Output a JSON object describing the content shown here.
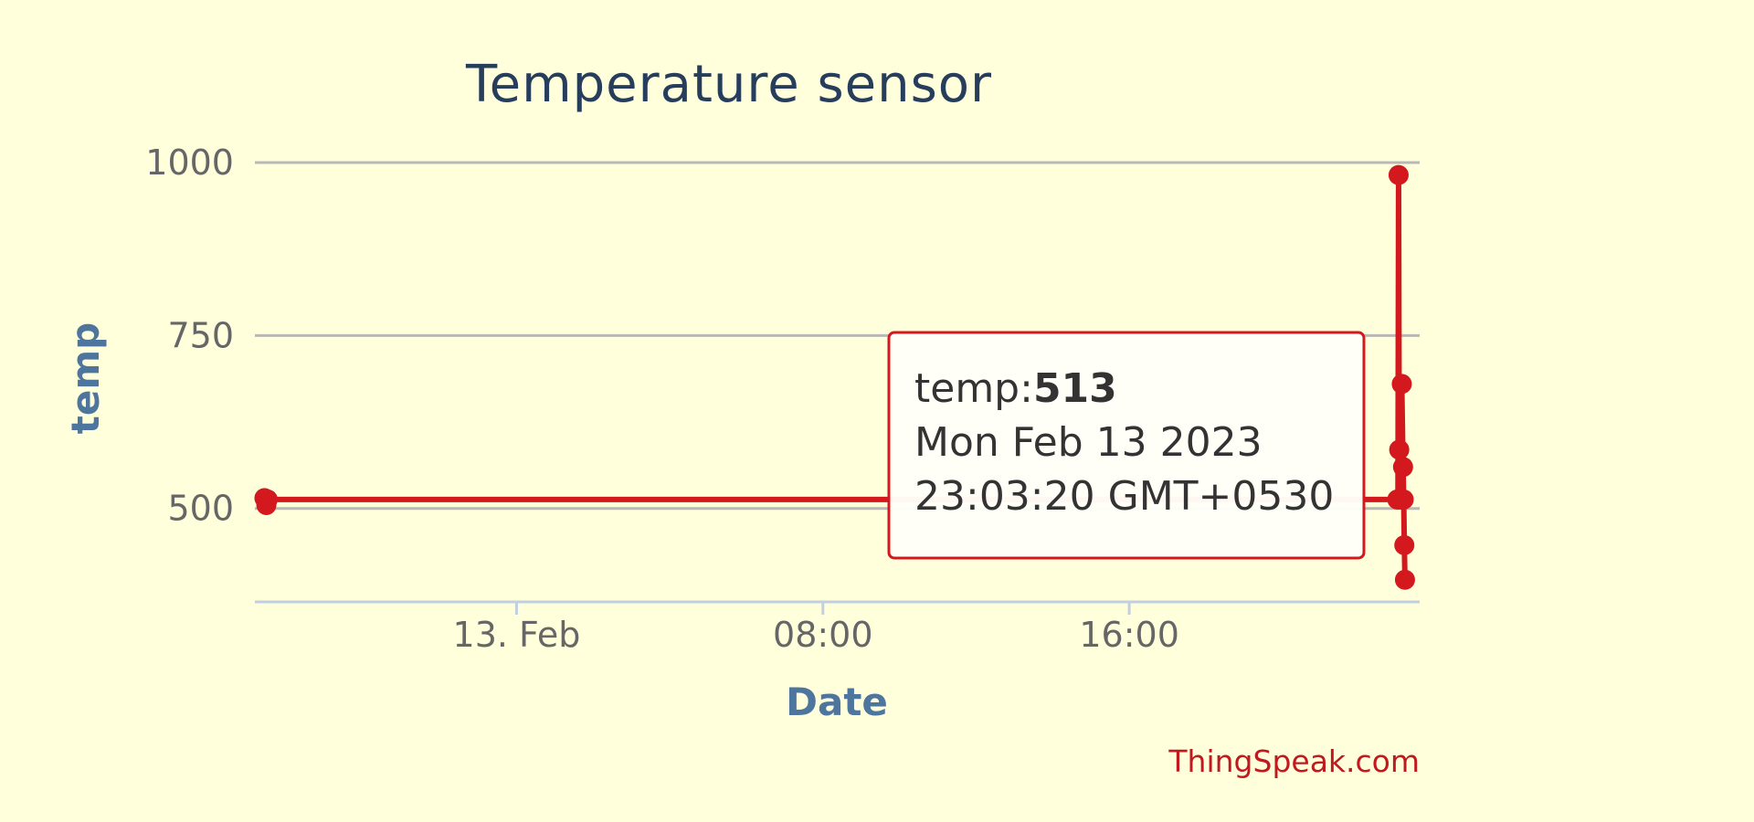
{
  "chart_data": {
    "type": "line",
    "title": "Temperature sensor",
    "xlabel": "Date",
    "ylabel": "temp",
    "x_ticks": [
      "13. Feb",
      "08:00",
      "16:00"
    ],
    "x_tick_times": [
      "2023-02-13 00:00",
      "2023-02-13 08:00",
      "2023-02-13 16:00"
    ],
    "x_range": [
      "2023-02-12 17:10",
      "2023-02-13 23:35"
    ],
    "yticks": [
      1000,
      750,
      500
    ],
    "ylim": [
      365,
      1000
    ],
    "grid": true,
    "legend": "none",
    "line_color": "#d3191e",
    "series": [
      {
        "x": [
          "2023-02-12 17:25",
          "2023-02-12 17:28",
          "2023-02-12 17:30",
          "2023-02-13 23:00",
          "2023-02-13 23:01",
          "2023-02-13 23:02",
          "2023-02-13 23:03",
          "2023-02-13 23:05",
          "2023-02-13 23:07",
          "2023-02-13 23:09",
          "2023-02-13 23:10",
          "2023-02-13 23:11",
          "2023-02-13 23:12"
        ],
        "y": [
          515,
          505,
          513,
          513,
          513,
          982,
          585,
          513,
          680,
          560,
          513,
          447,
          397
        ]
      }
    ],
    "tooltip": {
      "series_label": "temp:",
      "value": "513",
      "date": "Mon Feb 13 2023",
      "time": "23:03:20 GMT+0530"
    },
    "credits": "ThingSpeak.com"
  }
}
